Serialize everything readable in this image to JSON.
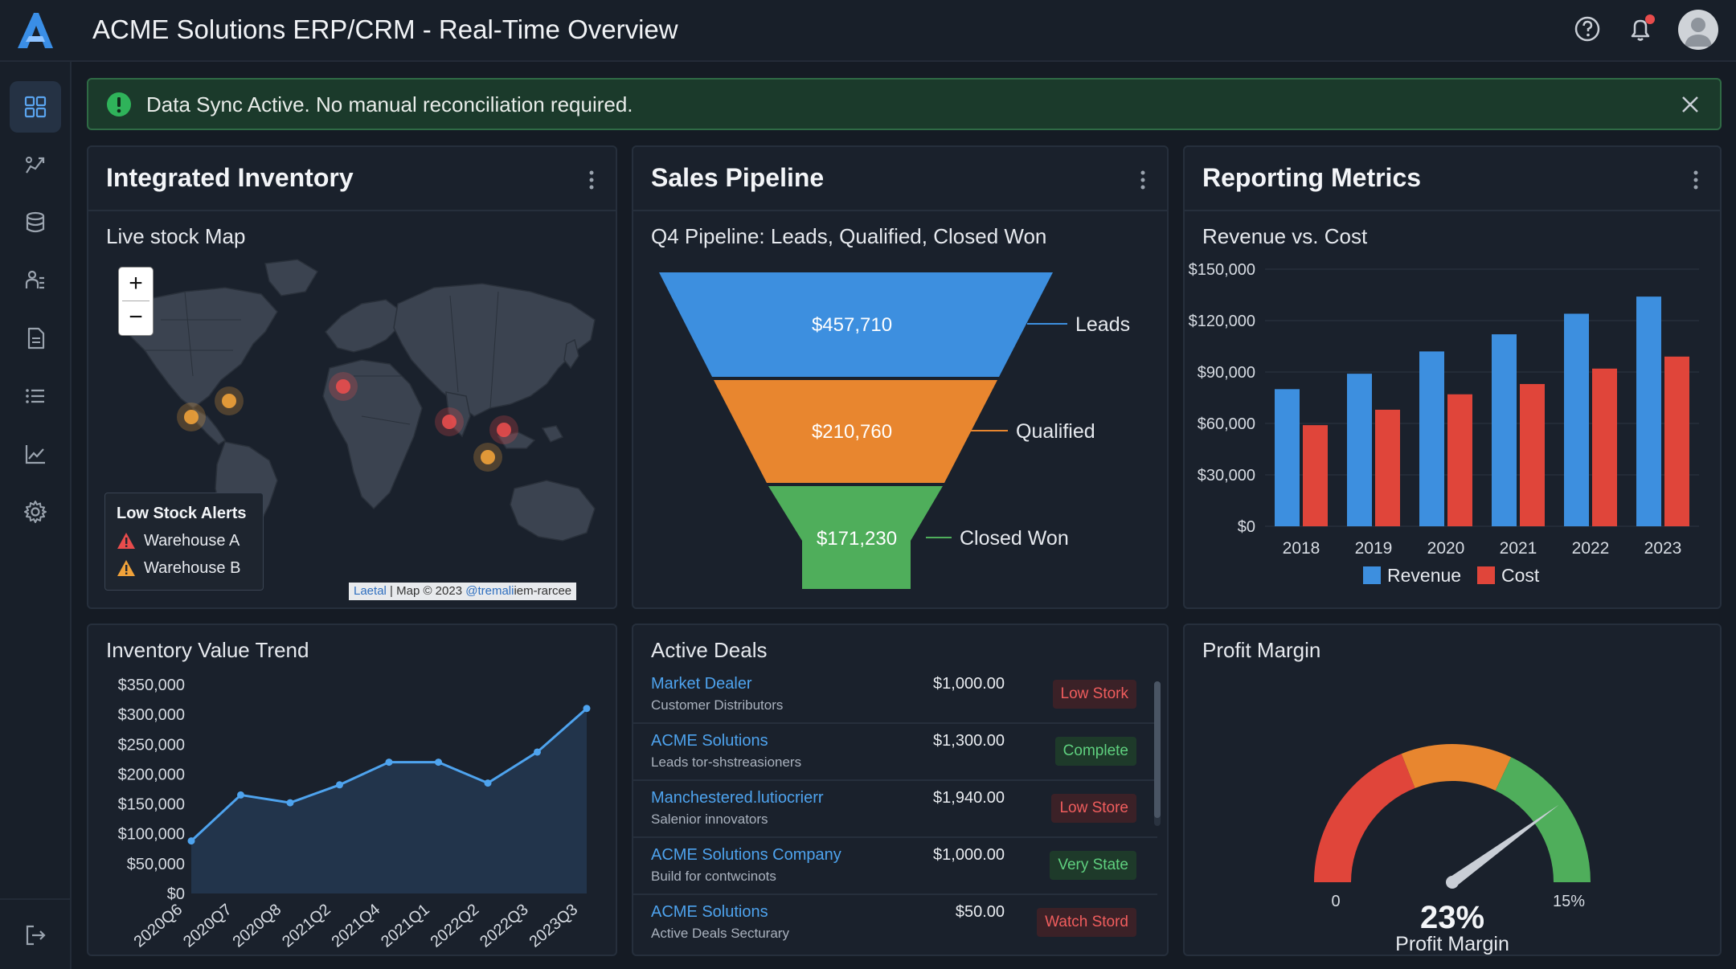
{
  "app": {
    "title": "ACME Solutions ERP/CRM - Real-Time Overview",
    "logo_icon": "acme-a-logo",
    "accent": "#3a8ee6"
  },
  "topbar": {
    "icons": [
      "help-icon",
      "bell-icon",
      "avatar"
    ],
    "notification_dot_color": "#e84c4c"
  },
  "sidebar": {
    "items": [
      {
        "icon": "dashboard-icon",
        "active": true
      },
      {
        "icon": "pipeline-icon",
        "active": false
      },
      {
        "icon": "database-icon",
        "active": false
      },
      {
        "icon": "users-icon",
        "active": false
      },
      {
        "icon": "document-icon",
        "active": false
      },
      {
        "icon": "list-icon",
        "active": false
      },
      {
        "icon": "analytics-icon",
        "active": false
      },
      {
        "icon": "settings-icon",
        "active": false
      }
    ],
    "logout_icon": "logout-icon"
  },
  "banner": {
    "text": "Data Sync Active. No manual reconciliation required.",
    "status_color": "#2fb35a"
  },
  "inventory": {
    "title": "Integrated Inventory",
    "map_title": "Live stock Map",
    "zoom_in": "+",
    "zoom_out": "−",
    "alerts_title": "Low Stock Alerts",
    "alerts": [
      {
        "label": "Warehouse A",
        "color": "#e84c4c"
      },
      {
        "label": "Warehouse B",
        "color": "#f0a23a"
      }
    ],
    "attribution": {
      "part1": "Laetal",
      "part2": " | Map © 2023 ",
      "part3": "@tremali",
      "part4": "iem-rarcee"
    }
  },
  "pipeline": {
    "title": "Sales Pipeline",
    "subtitle": "Q4 Pipeline: Leads, Qualified, Closed Won",
    "stages": [
      {
        "label": "Leads",
        "value": "$457,710",
        "color": "#3d8fdf"
      },
      {
        "label": "Qualified",
        "value": "$210,760",
        "color": "#e8862f"
      },
      {
        "label": "Closed Won",
        "value": "$171,230",
        "color": "#4fae5b"
      }
    ]
  },
  "reporting": {
    "title": "Reporting Metrics",
    "chart_title": "Revenue vs. Cost"
  },
  "inventory_trend": {
    "title": "Inventory Value Trend"
  },
  "deals": {
    "title": "Active Deals",
    "rows": [
      {
        "name": "Market Dealer",
        "sub": "Customer Distributors",
        "amount": "$1,000.00",
        "badge": "Low Stork",
        "badge_type": "red"
      },
      {
        "name": "ACME Solutions",
        "sub": "Leads tor-shstreasioners",
        "amount": "$1,300.00",
        "badge": "Complete",
        "badge_type": "green"
      },
      {
        "name": "Manchestered.lutiocrierr",
        "sub": "Salenior innovators",
        "amount": "$1,940.00",
        "badge": "Low Store",
        "badge_type": "red"
      },
      {
        "name": "ACME Solutions Company",
        "sub": "Build for contwcinots",
        "amount": "$1,000.00",
        "badge": "Very State",
        "badge_type": "green"
      },
      {
        "name": "ACME Solutions",
        "sub": "Active Deals Secturary",
        "amount": "$50.00",
        "badge": "Watch Stord",
        "badge_type": "red"
      }
    ]
  },
  "profit": {
    "title": "Profit Margin",
    "value_label": "23%",
    "caption": "Profit Margin",
    "min_label": "0",
    "max_label": "15%",
    "needle_fraction": 0.8,
    "zone_colors": [
      "#e0453a",
      "#e8862f",
      "#4fae5b"
    ]
  },
  "chart_data": [
    {
      "type": "bar",
      "title": "Revenue vs. Cost",
      "categories": [
        "2018",
        "2019",
        "2020",
        "2021",
        "2022",
        "2023"
      ],
      "series": [
        {
          "name": "Revenue",
          "color": "#3d8fdf",
          "values": [
            80000,
            89000,
            102000,
            112000,
            124000,
            134000
          ]
        },
        {
          "name": "Cost",
          "color": "#e0453a",
          "values": [
            59000,
            68000,
            77000,
            83000,
            92000,
            99000
          ]
        }
      ],
      "ylim": [
        0,
        150000
      ],
      "yticks": [
        0,
        30000,
        60000,
        90000,
        120000,
        150000
      ],
      "ytick_labels": [
        "$0",
        "$30,000",
        "$60,000",
        "$90,000",
        "$120,000",
        "$150,000"
      ],
      "grid": true,
      "legend": "bottom"
    },
    {
      "type": "area",
      "title": "Inventory Value Trend",
      "x": [
        "2020Q6",
        "2020Q7",
        "2020Q8",
        "2021Q2",
        "2021Q4",
        "2021Q1",
        "2022Q2",
        "2022Q3",
        "2023Q3"
      ],
      "values": [
        88000,
        165000,
        152000,
        182000,
        220000,
        220000,
        185000,
        237000,
        310000
      ],
      "ylim": [
        0,
        350000
      ],
      "yticks": [
        0,
        50000,
        100000,
        150000,
        200000,
        250000,
        300000,
        350000
      ],
      "ytick_labels": [
        "$0",
        "$50,000",
        "$100,000",
        "$150,000",
        "$200,000",
        "$250,000",
        "$300,000",
        "$350,000"
      ],
      "color": "#4ea3ee"
    }
  ]
}
